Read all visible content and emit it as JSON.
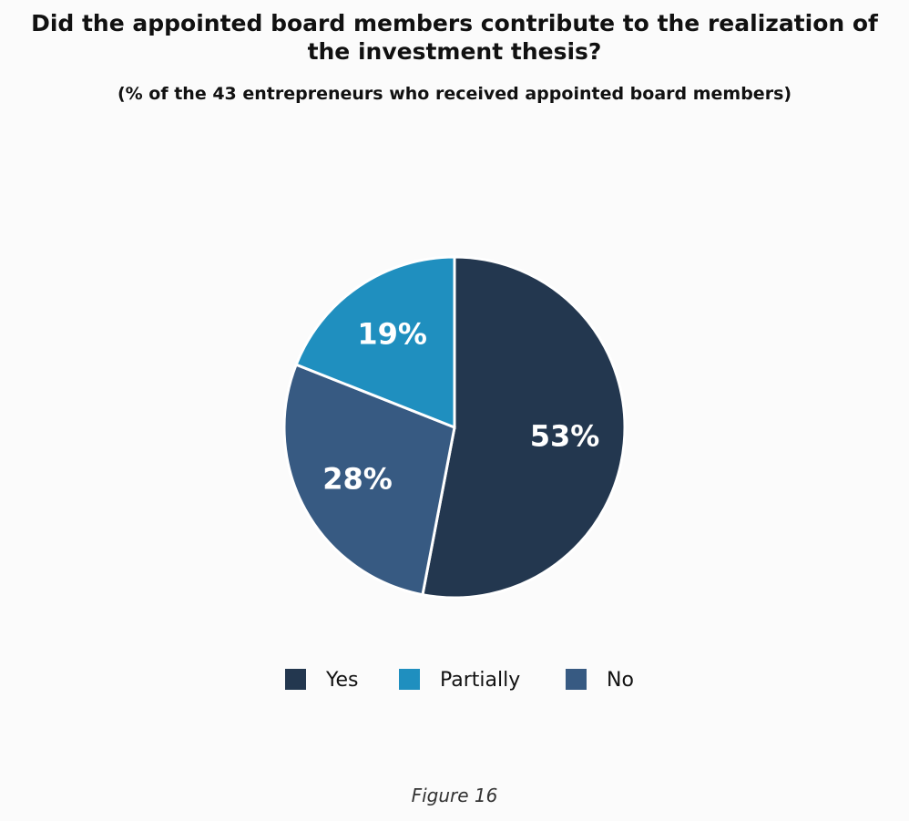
{
  "chart_data": {
    "type": "pie",
    "title": "Did the appointed board members contribute to the realization of the investment thesis?",
    "subtitle": "(% of the 43 entrepreneurs who received appointed board members)",
    "categories": [
      "Yes",
      "Partially",
      "No"
    ],
    "values": [
      53,
      19,
      28
    ],
    "value_labels": [
      "53%",
      "19%",
      "28%"
    ],
    "colors": [
      "#23374f",
      "#1f8fbf",
      "#375a82"
    ],
    "legend": "bottom",
    "caption": "Figure 16"
  }
}
